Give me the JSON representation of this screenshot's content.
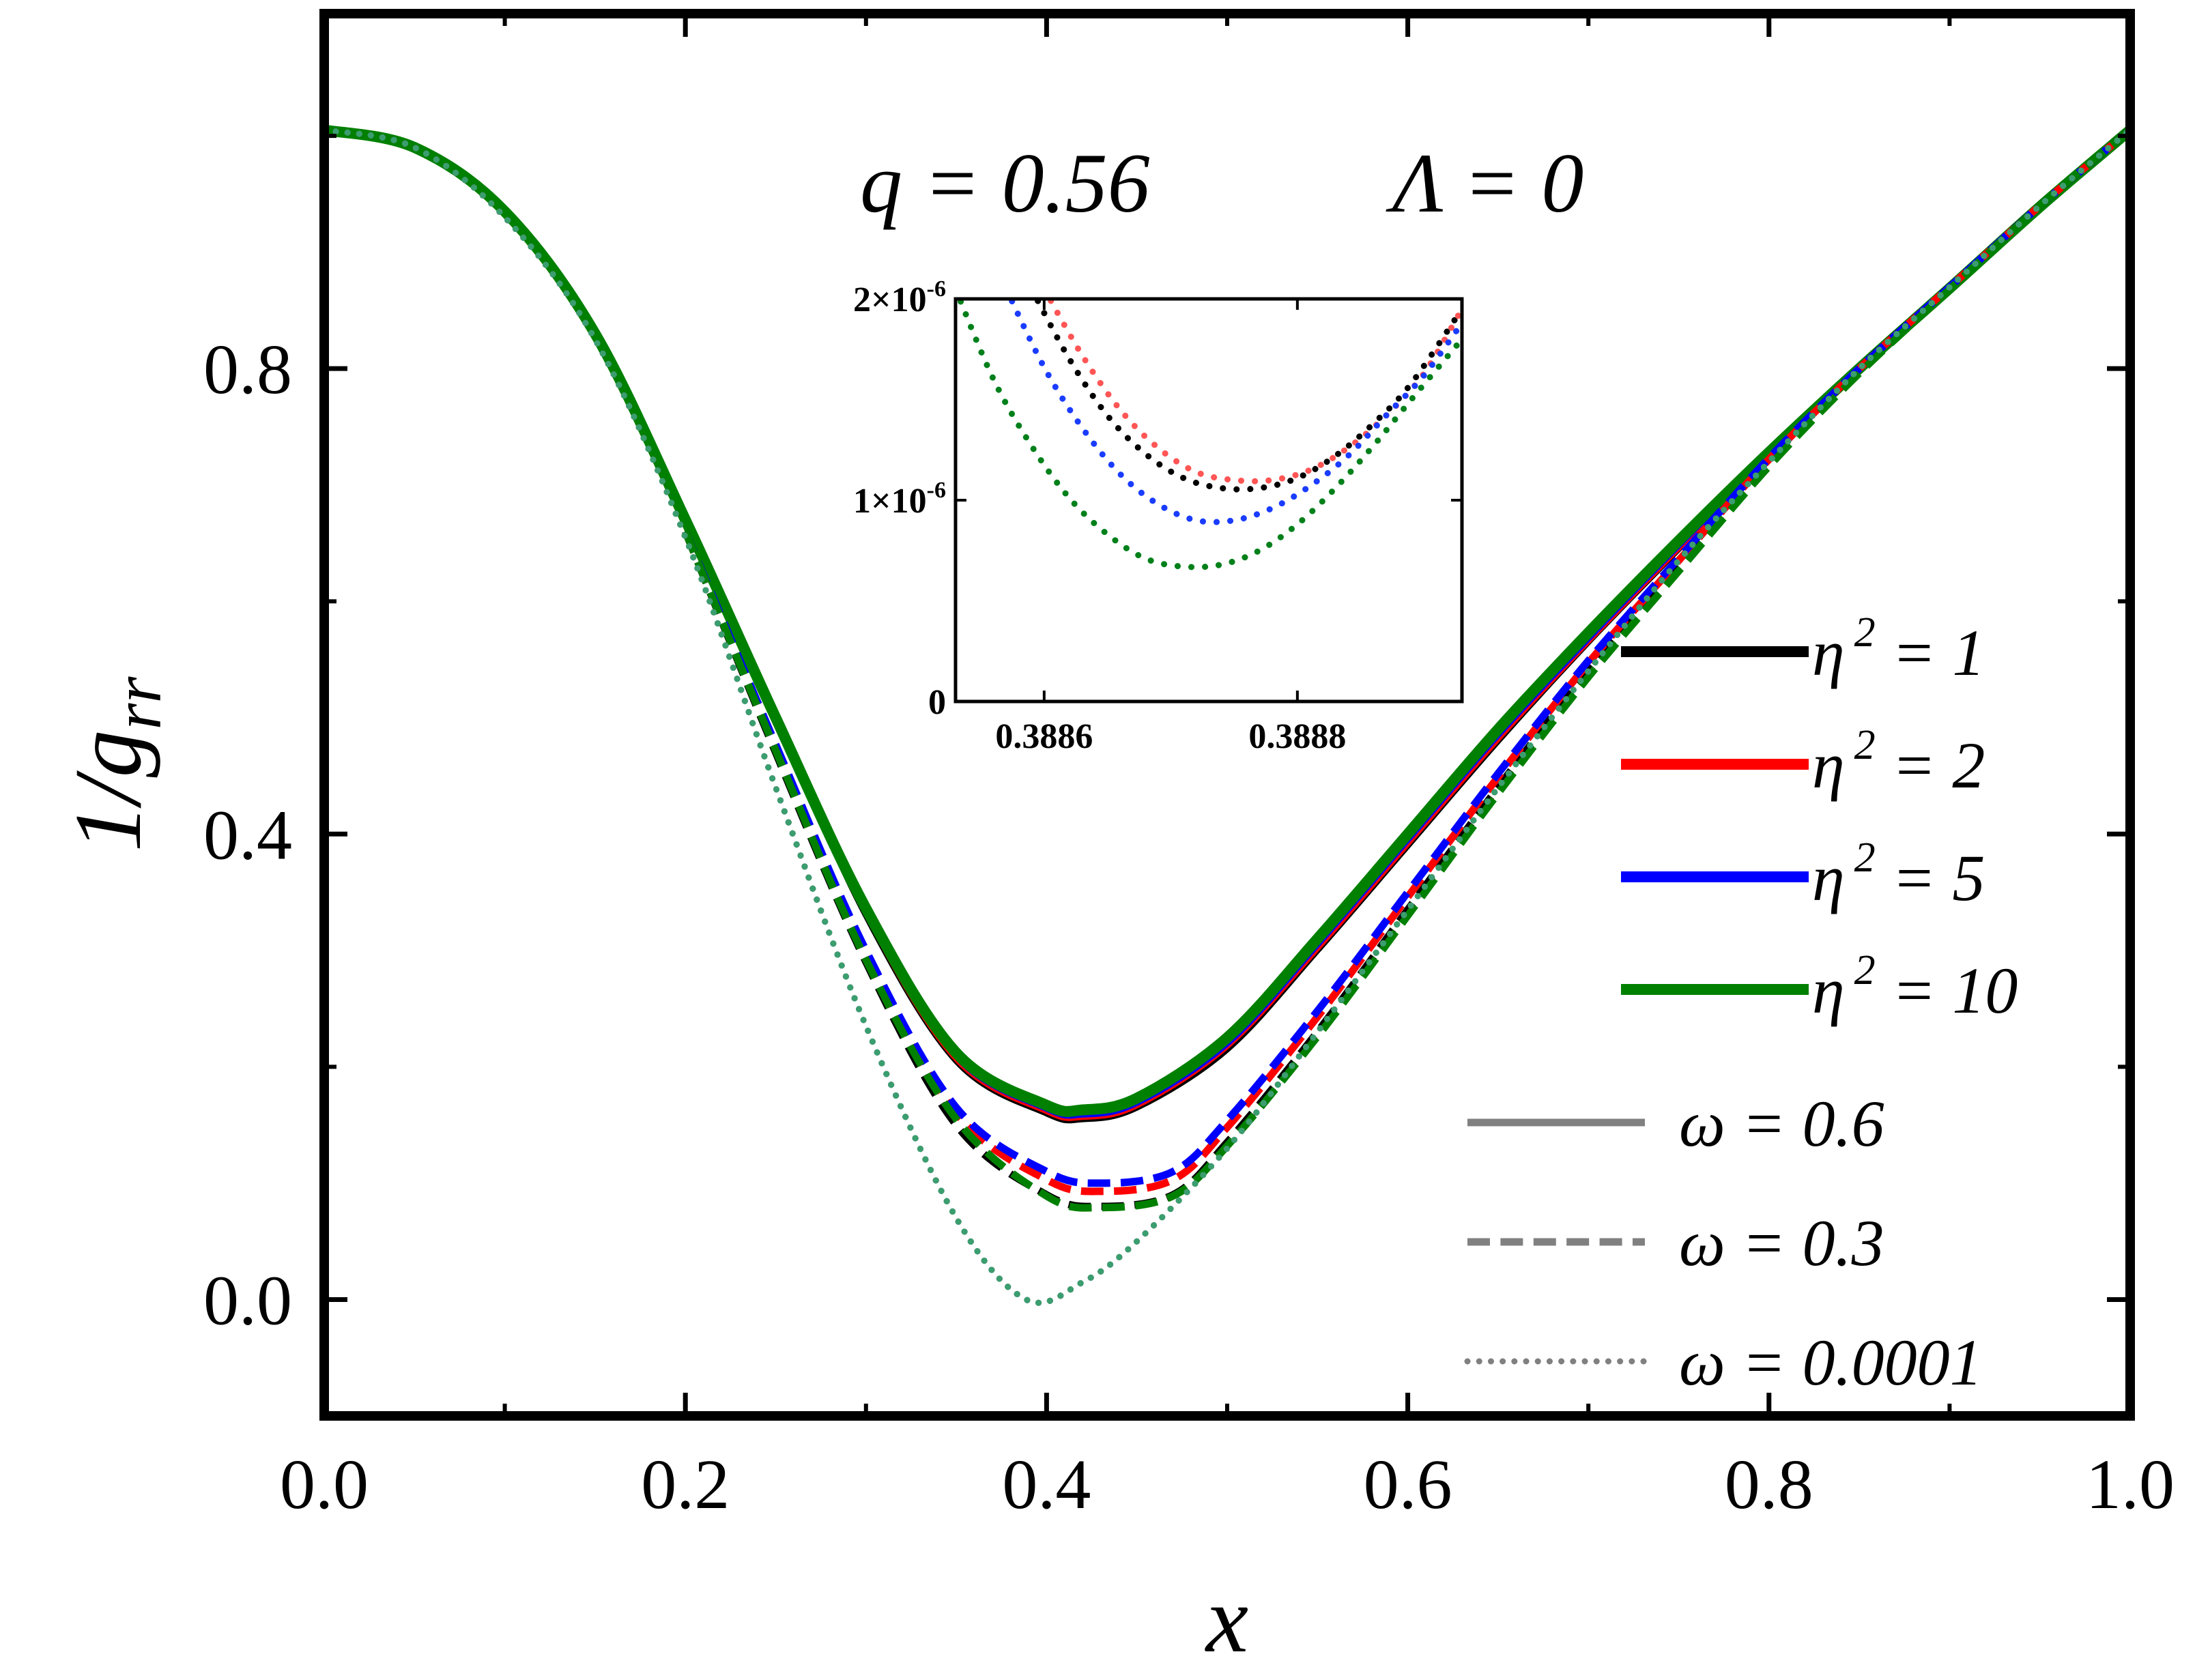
{
  "chart_data": [
    {
      "type": "line",
      "role": "main",
      "title": "",
      "xlabel": "x",
      "ylabel": "1/g",
      "ylabel_sub": "rr",
      "xlim": [
        0.0,
        1.0
      ],
      "ylim": [
        -0.1,
        1.105
      ],
      "x_ticks": [
        0.0,
        0.2,
        0.4,
        0.6,
        0.8,
        1.0
      ],
      "x_tick_labels": [
        "0.0",
        "0.2",
        "0.4",
        "0.6",
        "0.8",
        "1.0"
      ],
      "y_ticks": [
        0.0,
        0.4,
        0.8
      ],
      "y_tick_labels": [
        "0.0",
        "0.4",
        "0.8"
      ],
      "grid": false,
      "annotation": {
        "left": "q = 0.56",
        "right": "Λ = 0"
      },
      "legend_position": "right",
      "legend": {
        "colors": [
          {
            "prefix": "η",
            "sup": "2",
            "suffix": " = 1",
            "color": "#000000"
          },
          {
            "prefix": "η",
            "sup": "2",
            "suffix": " = 2",
            "color": "#ff0000"
          },
          {
            "prefix": "η",
            "sup": "2",
            "suffix": " = 5",
            "color": "#0000ff"
          },
          {
            "prefix": "η",
            "sup": "2",
            "suffix": " = 10",
            "color": "#008000"
          }
        ],
        "styles": [
          {
            "label": "ω = 0.6",
            "dash": "solid",
            "color": "#808080"
          },
          {
            "label": "ω = 0.3",
            "dash": "dashed",
            "color": "#808080"
          },
          {
            "label": "ω = 0.0001",
            "dash": "dotted",
            "color": "#808080"
          }
        ]
      },
      "series": [
        {
          "name": "η² = 1, ω = 0.6",
          "color": "#000000",
          "dash": "solid",
          "x": [
            0,
            0.05,
            0.1,
            0.15,
            0.2,
            0.25,
            0.3,
            0.35,
            0.4,
            0.42,
            0.45,
            0.5,
            0.55,
            0.6,
            0.65,
            0.7,
            0.75,
            0.8,
            0.85,
            0.9,
            0.95,
            1.0
          ],
          "y": [
            1.005,
            0.99,
            0.935,
            0.83,
            0.67,
            0.5,
            0.33,
            0.205,
            0.16,
            0.155,
            0.165,
            0.215,
            0.3,
            0.39,
            0.48,
            0.565,
            0.645,
            0.725,
            0.8,
            0.87,
            0.94,
            1.005
          ]
        },
        {
          "name": "η² = 2, ω = 0.6",
          "color": "#ff0000",
          "dash": "solid",
          "x": [
            0,
            0.05,
            0.1,
            0.15,
            0.2,
            0.25,
            0.3,
            0.35,
            0.4,
            0.42,
            0.45,
            0.5,
            0.55,
            0.6,
            0.65,
            0.7,
            0.75,
            0.8,
            0.85,
            0.9,
            0.95,
            1.0
          ],
          "y": [
            1.005,
            0.99,
            0.935,
            0.83,
            0.67,
            0.5,
            0.332,
            0.207,
            0.162,
            0.157,
            0.167,
            0.218,
            0.302,
            0.392,
            0.482,
            0.566,
            0.646,
            0.724,
            0.798,
            0.868,
            0.939,
            1.005
          ]
        },
        {
          "name": "η² = 5, ω = 0.6",
          "color": "#0000ff",
          "dash": "solid",
          "x": [
            0,
            0.05,
            0.1,
            0.15,
            0.2,
            0.25,
            0.3,
            0.35,
            0.4,
            0.42,
            0.45,
            0.5,
            0.55,
            0.6,
            0.65,
            0.7,
            0.75,
            0.8,
            0.85,
            0.9,
            0.95,
            1.0
          ],
          "y": [
            1.005,
            0.99,
            0.935,
            0.83,
            0.67,
            0.5,
            0.334,
            0.209,
            0.164,
            0.159,
            0.169,
            0.22,
            0.305,
            0.395,
            0.485,
            0.568,
            0.648,
            0.725,
            0.798,
            0.868,
            0.939,
            1.005
          ]
        },
        {
          "name": "η² = 10, ω = 0.6",
          "color": "#008000",
          "dash": "solid",
          "x": [
            0,
            0.05,
            0.1,
            0.15,
            0.2,
            0.25,
            0.3,
            0.35,
            0.4,
            0.42,
            0.45,
            0.5,
            0.55,
            0.6,
            0.65,
            0.7,
            0.75,
            0.8,
            0.85,
            0.9,
            0.95,
            1.0
          ],
          "y": [
            1.005,
            0.99,
            0.935,
            0.83,
            0.67,
            0.5,
            0.336,
            0.212,
            0.167,
            0.163,
            0.173,
            0.225,
            0.31,
            0.4,
            0.49,
            0.573,
            0.652,
            0.728,
            0.8,
            0.869,
            0.939,
            1.005
          ]
        },
        {
          "name": "η² = 1, ω = 0.3",
          "color": "#000000",
          "dash": "dashed",
          "x": [
            0.2,
            0.25,
            0.3,
            0.35,
            0.4,
            0.43,
            0.47,
            0.5,
            0.55,
            0.6,
            0.65,
            0.7,
            0.75,
            0.8,
            0.85,
            0.9,
            0.95,
            1.0
          ],
          "y": [
            0.66,
            0.47,
            0.29,
            0.15,
            0.09,
            0.08,
            0.09,
            0.135,
            0.23,
            0.335,
            0.44,
            0.54,
            0.63,
            0.72,
            0.8,
            0.87,
            0.94,
            1.005
          ]
        },
        {
          "name": "η² = 2, ω = 0.3",
          "color": "#ff0000",
          "dash": "dashed",
          "x": [
            0.2,
            0.25,
            0.3,
            0.35,
            0.4,
            0.43,
            0.47,
            0.5,
            0.55,
            0.6,
            0.65,
            0.7,
            0.75,
            0.8,
            0.85,
            0.9,
            0.95,
            1.0
          ],
          "y": [
            0.66,
            0.475,
            0.295,
            0.16,
            0.103,
            0.093,
            0.103,
            0.148,
            0.243,
            0.346,
            0.449,
            0.547,
            0.635,
            0.722,
            0.8,
            0.87,
            0.94,
            1.005
          ]
        },
        {
          "name": "η² = 5, ω = 0.3",
          "color": "#0000ff",
          "dash": "dashed",
          "x": [
            0.2,
            0.25,
            0.3,
            0.35,
            0.4,
            0.43,
            0.47,
            0.5,
            0.55,
            0.6,
            0.65,
            0.7,
            0.75,
            0.8,
            0.85,
            0.9,
            0.95,
            1.0
          ],
          "y": [
            0.66,
            0.477,
            0.3,
            0.165,
            0.11,
            0.1,
            0.11,
            0.154,
            0.248,
            0.35,
            0.452,
            0.549,
            0.637,
            0.723,
            0.8,
            0.87,
            0.94,
            1.005
          ]
        },
        {
          "name": "η² = 10, ω = 0.3",
          "color": "#008000",
          "dash": "dashed",
          "x": [
            0.2,
            0.25,
            0.3,
            0.35,
            0.4,
            0.43,
            0.47,
            0.5,
            0.55,
            0.6,
            0.65,
            0.7,
            0.75,
            0.8,
            0.85,
            0.9,
            0.95,
            1.0
          ],
          "y": [
            0.66,
            0.472,
            0.292,
            0.155,
            0.089,
            0.079,
            0.089,
            0.132,
            0.226,
            0.33,
            0.435,
            0.535,
            0.626,
            0.716,
            0.796,
            0.868,
            0.94,
            1.005
          ]
        },
        {
          "name": "η² = 1, ω = 0.0001",
          "color": "#000000",
          "dash": "dotted",
          "x": [
            0,
            0.05,
            0.1,
            0.15,
            0.2,
            0.25,
            0.3,
            0.35,
            0.3887,
            0.42,
            0.45,
            0.5,
            0.55,
            0.6,
            0.65,
            0.7,
            0.75,
            0.8,
            0.85,
            0.9,
            0.95,
            1.0
          ],
          "y": [
            1.005,
            0.99,
            0.93,
            0.825,
            0.655,
            0.44,
            0.235,
            0.07,
            0.0,
            0.015,
            0.05,
            0.13,
            0.23,
            0.335,
            0.44,
            0.54,
            0.635,
            0.72,
            0.8,
            0.87,
            0.94,
            1.005
          ]
        },
        {
          "name": "η² = 2, ω = 0.0001",
          "color": "#ff6666",
          "dash": "dotted",
          "x": [
            0,
            0.05,
            0.1,
            0.15,
            0.2,
            0.25,
            0.3,
            0.35,
            0.3887,
            0.42,
            0.45,
            0.5,
            0.55,
            0.6,
            0.65,
            0.7,
            0.75,
            0.8,
            0.85,
            0.9,
            0.95,
            1.0
          ],
          "y": [
            1.005,
            0.99,
            0.93,
            0.825,
            0.655,
            0.44,
            0.235,
            0.07,
            0.0,
            0.015,
            0.05,
            0.13,
            0.23,
            0.335,
            0.44,
            0.54,
            0.635,
            0.72,
            0.8,
            0.87,
            0.94,
            1.005
          ]
        },
        {
          "name": "η² = 5, ω = 0.0001",
          "color": "#4d88d9",
          "dash": "dotted",
          "x": [
            0,
            0.05,
            0.1,
            0.15,
            0.2,
            0.25,
            0.3,
            0.35,
            0.3887,
            0.42,
            0.45,
            0.5,
            0.55,
            0.6,
            0.65,
            0.7,
            0.75,
            0.8,
            0.85,
            0.9,
            0.95,
            1.0
          ],
          "y": [
            1.005,
            0.99,
            0.93,
            0.825,
            0.655,
            0.44,
            0.235,
            0.07,
            0.0,
            0.015,
            0.05,
            0.13,
            0.23,
            0.335,
            0.44,
            0.54,
            0.635,
            0.72,
            0.8,
            0.87,
            0.94,
            1.005
          ]
        },
        {
          "name": "η² = 10, ω = 0.0001",
          "color": "#3a9e6e",
          "dash": "dotted",
          "x": [
            0,
            0.05,
            0.1,
            0.15,
            0.2,
            0.25,
            0.3,
            0.35,
            0.3887,
            0.42,
            0.45,
            0.5,
            0.55,
            0.6,
            0.65,
            0.7,
            0.75,
            0.8,
            0.85,
            0.9,
            0.95,
            1.0
          ],
          "y": [
            1.005,
            0.99,
            0.93,
            0.825,
            0.655,
            0.44,
            0.235,
            0.07,
            0.0,
            0.015,
            0.05,
            0.13,
            0.23,
            0.335,
            0.44,
            0.54,
            0.635,
            0.72,
            0.8,
            0.87,
            0.94,
            1.005
          ]
        }
      ]
    },
    {
      "type": "line",
      "role": "inset",
      "xlim": [
        0.38853,
        0.38893
      ],
      "ylim": [
        0,
        2.0
      ],
      "y_unit": "1e-6",
      "x_ticks": [
        0.3886,
        0.3888
      ],
      "x_tick_labels": [
        "0.3886",
        "0.3888"
      ],
      "y_ticks": [
        0,
        1,
        2
      ],
      "y_tick_labels": [
        {
          "base": "0",
          "exp": ""
        },
        {
          "base": "1×10",
          "exp": "-6"
        },
        {
          "base": "2×10",
          "exp": "-6"
        }
      ],
      "series": [
        {
          "name": "η² = 1",
          "color": "#000000",
          "dash": "dotted",
          "x": [
            0.38859,
            0.38862,
            0.38865,
            0.38868,
            0.38871,
            0.38874,
            0.38877,
            0.3888,
            0.38883,
            0.38886,
            0.38889,
            0.38893
          ],
          "y": [
            2.05,
            1.7,
            1.42,
            1.23,
            1.11,
            1.06,
            1.06,
            1.11,
            1.22,
            1.38,
            1.58,
            1.95
          ]
        },
        {
          "name": "η² = 2",
          "color": "#ff5555",
          "dash": "dotted",
          "x": [
            0.3886,
            0.38863,
            0.38866,
            0.38869,
            0.38872,
            0.38875,
            0.38878,
            0.38881,
            0.38884,
            0.38887,
            0.3889,
            0.38893
          ],
          "y": [
            2.05,
            1.72,
            1.45,
            1.26,
            1.14,
            1.1,
            1.1,
            1.15,
            1.26,
            1.42,
            1.63,
            1.95
          ]
        },
        {
          "name": "η² = 5",
          "color": "#1a3cff",
          "dash": "dotted",
          "x": [
            0.38857,
            0.3886,
            0.38863,
            0.38866,
            0.38869,
            0.38872,
            0.38875,
            0.38878,
            0.38881,
            0.38884,
            0.38887,
            0.3889,
            0.38893
          ],
          "y": [
            2.05,
            1.66,
            1.36,
            1.13,
            0.98,
            0.9,
            0.9,
            0.96,
            1.07,
            1.22,
            1.42,
            1.62,
            1.88
          ]
        },
        {
          "name": "η² = 10",
          "color": "#00801a",
          "dash": "dotted",
          "x": [
            0.38853,
            0.38856,
            0.38859,
            0.38862,
            0.38865,
            0.38868,
            0.38871,
            0.38874,
            0.38877,
            0.3888,
            0.38883,
            0.38886,
            0.38889,
            0.38893
          ],
          "y": [
            2.05,
            1.6,
            1.27,
            1.01,
            0.83,
            0.71,
            0.67,
            0.68,
            0.75,
            0.88,
            1.06,
            1.27,
            1.5,
            1.8
          ]
        }
      ]
    }
  ]
}
